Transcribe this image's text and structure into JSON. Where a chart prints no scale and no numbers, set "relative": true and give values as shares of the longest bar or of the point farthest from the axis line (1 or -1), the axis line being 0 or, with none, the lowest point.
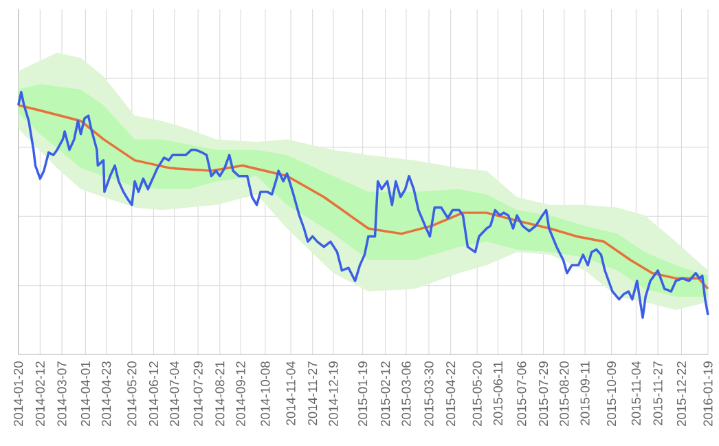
{
  "chart_data": {
    "type": "line",
    "relative": true,
    "grid": true,
    "xlim": [
      "2014-01-20",
      "2016-01-19"
    ],
    "xticks": [
      "2014-01-20",
      "2014-02-12",
      "2014-03-07",
      "2014-04-01",
      "2014-04-23",
      "2014-05-20",
      "2014-06-12",
      "2014-07-04",
      "2014-07-29",
      "2014-08-21",
      "2014-09-12",
      "2014-10-08",
      "2014-11-04",
      "2014-11-27",
      "2014-12-19",
      "2015-01-19",
      "2015-02-12",
      "2015-03-06",
      "2015-03-30",
      "2015-04-22",
      "2015-05-20",
      "2015-06-11",
      "2015-07-06",
      "2015-07-29",
      "2015-08-20",
      "2015-09-11",
      "2015-10-09",
      "2015-11-04",
      "2015-11-27",
      "2015-12-22",
      "2016-01-19"
    ],
    "series": [
      {
        "color": "#def6d6",
        "x": [
          "2014-01-20",
          "2014-03-02",
          "2014-03-27",
          "2014-04-20",
          "2014-05-23",
          "2014-06-21",
          "2014-07-19",
          "2014-08-17",
          "2014-09-29",
          "2014-10-31",
          "2014-12-19",
          "2015-01-25",
          "2015-03-15",
          "2015-05-01",
          "2015-05-30",
          "2015-07-01",
          "2015-08-05",
          "2015-09-11",
          "2015-10-15",
          "2015-11-13",
          "2015-12-16",
          "2016-01-19"
        ],
        "values": [
          null,
          null,
          null,
          null,
          null,
          null,
          null,
          null,
          null,
          null,
          null,
          null,
          null,
          null,
          null,
          null,
          null,
          null,
          null,
          null,
          null,
          null
        ],
        "upper": [
          1.08,
          1.15,
          1.13,
          1.06,
          0.91,
          0.89,
          0.86,
          0.82,
          0.81,
          0.82,
          0.78,
          0.76,
          0.74,
          0.71,
          0.7,
          0.6,
          0.57,
          0.57,
          0.56,
          0.53,
          0.43,
          0.32
        ],
        "lower": [
          0.86,
          0.71,
          0.63,
          0.6,
          0.56,
          0.55,
          0.56,
          0.57,
          0.61,
          0.48,
          0.31,
          0.24,
          0.25,
          0.31,
          0.34,
          0.39,
          0.38,
          0.32,
          0.22,
          0.2,
          0.17,
          0.2
        ]
      },
      {
        "color": "#bdf8b4",
        "x": [
          "2014-01-20",
          "2014-02-12",
          "2014-03-27",
          "2014-04-20",
          "2014-05-23",
          "2014-06-21",
          "2014-07-19",
          "2014-08-17",
          "2014-09-29",
          "2014-10-31",
          "2014-12-19",
          "2015-01-25",
          "2015-03-15",
          "2015-05-01",
          "2015-05-30",
          "2015-07-01",
          "2015-08-05",
          "2015-09-11",
          "2015-10-15",
          "2015-11-13",
          "2015-12-16",
          "2016-01-19"
        ],
        "values": [
          null,
          null,
          null,
          null,
          null,
          null,
          null,
          null,
          null,
          null,
          null,
          null,
          null,
          null,
          null,
          null,
          null,
          null,
          null,
          null,
          null,
          null
        ],
        "upper": [
          1.01,
          1.03,
          1.01,
          0.95,
          0.82,
          0.82,
          0.8,
          0.78,
          0.78,
          0.76,
          0.68,
          0.62,
          0.62,
          0.63,
          0.61,
          0.55,
          0.53,
          0.49,
          0.46,
          0.39,
          0.34,
          0.3
        ],
        "lower": [
          0.92,
          0.84,
          0.71,
          0.68,
          0.64,
          0.63,
          0.63,
          0.66,
          0.68,
          0.57,
          0.46,
          0.36,
          0.36,
          0.41,
          0.43,
          0.4,
          0.39,
          0.37,
          0.32,
          0.25,
          0.22,
          0.22
        ]
      },
      {
        "color": "#e8703a",
        "x": [
          "2014-01-20",
          "2014-02-12",
          "2014-03-27",
          "2014-04-20",
          "2014-05-23",
          "2014-06-30",
          "2014-08-12",
          "2014-09-14",
          "2014-10-31",
          "2014-12-09",
          "2015-01-25",
          "2015-03-01",
          "2015-04-02",
          "2015-05-05",
          "2015-05-30",
          "2015-07-01",
          "2015-08-05",
          "2015-09-02",
          "2015-10-01",
          "2015-10-29",
          "2015-11-21",
          "2015-12-16",
          "2016-01-09",
          "2016-01-19"
        ],
        "values": [
          0.95,
          0.93,
          0.89,
          0.82,
          0.74,
          0.71,
          0.7,
          0.72,
          0.68,
          0.6,
          0.48,
          0.46,
          0.49,
          0.54,
          0.54,
          0.51,
          0.48,
          0.45,
          0.43,
          0.36,
          0.31,
          0.29,
          0.29,
          0.25
        ]
      },
      {
        "color": "#3a5ee6",
        "x": [
          "2014-01-20",
          "2014-01-23",
          "2014-01-26",
          "2014-01-31",
          "2014-02-05",
          "2014-02-07",
          "2014-02-12",
          "2014-02-16",
          "2014-02-21",
          "2014-02-26",
          "2014-03-02",
          "2014-03-08",
          "2014-03-10",
          "2014-03-15",
          "2014-03-20",
          "2014-03-24",
          "2014-03-27",
          "2014-03-31",
          "2014-04-04",
          "2014-04-07",
          "2014-04-13",
          "2014-04-14",
          "2014-04-20",
          "2014-04-21",
          "2014-04-27",
          "2014-05-02",
          "2014-05-06",
          "2014-05-11",
          "2014-05-16",
          "2014-05-20",
          "2014-05-23",
          "2014-05-27",
          "2014-06-01",
          "2014-06-06",
          "2014-06-11",
          "2014-06-16",
          "2014-06-23",
          "2014-06-28",
          "2014-07-02",
          "2014-07-09",
          "2014-07-16",
          "2014-07-22",
          "2014-07-26",
          "2014-08-02",
          "2014-08-07",
          "2014-08-12",
          "2014-08-17",
          "2014-08-21",
          "2014-08-26",
          "2014-08-31",
          "2014-09-04",
          "2014-09-10",
          "2014-09-14",
          "2014-09-19",
          "2014-09-24",
          "2014-09-29",
          "2014-10-03",
          "2014-10-10",
          "2014-10-15",
          "2014-10-20",
          "2014-10-22",
          "2014-10-27",
          "2014-10-31",
          "2014-11-06",
          "2014-11-13",
          "2014-11-18",
          "2014-11-22",
          "2014-11-27",
          "2014-12-02",
          "2014-12-09",
          "2014-12-16",
          "2014-12-23",
          "2014-12-28",
          "2015-01-04",
          "2015-01-11",
          "2015-01-16",
          "2015-01-21",
          "2015-01-25",
          "2015-02-01",
          "2015-02-04",
          "2015-02-08",
          "2015-02-14",
          "2015-02-19",
          "2015-02-23",
          "2015-02-28",
          "2015-03-05",
          "2015-03-09",
          "2015-03-14",
          "2015-03-19",
          "2015-03-26",
          "2015-03-31",
          "2015-04-05",
          "2015-04-12",
          "2015-04-19",
          "2015-04-24",
          "2015-05-01",
          "2015-05-05",
          "2015-05-10",
          "2015-05-18",
          "2015-05-22",
          "2015-05-30",
          "2015-06-03",
          "2015-06-08",
          "2015-06-13",
          "2015-06-17",
          "2015-06-22",
          "2015-06-27",
          "2015-07-01",
          "2015-07-07",
          "2015-07-14",
          "2015-07-21",
          "2015-07-28",
          "2015-08-01",
          "2015-08-04",
          "2015-08-12",
          "2015-08-19",
          "2015-08-23",
          "2015-08-28",
          "2015-09-04",
          "2015-09-09",
          "2015-09-14",
          "2015-09-18",
          "2015-09-23",
          "2015-09-28",
          "2015-10-02",
          "2015-10-10",
          "2015-10-17",
          "2015-10-22",
          "2015-10-27",
          "2015-10-31",
          "2015-11-05",
          "2015-11-11",
          "2015-11-14",
          "2015-11-19",
          "2015-11-27",
          "2015-12-04",
          "2015-12-11",
          "2015-12-16",
          "2015-12-23",
          "2015-12-30",
          "2016-01-06",
          "2016-01-10",
          "2016-01-13",
          "2016-01-16",
          "2016-01-19"
        ],
        "values": [
          0.95,
          1.0,
          0.95,
          0.89,
          0.78,
          0.72,
          0.67,
          0.7,
          0.77,
          0.76,
          0.78,
          0.82,
          0.85,
          0.78,
          0.82,
          0.89,
          0.84,
          0.9,
          0.91,
          0.86,
          0.78,
          0.72,
          0.74,
          0.62,
          0.68,
          0.72,
          0.66,
          0.62,
          0.59,
          0.57,
          0.66,
          0.62,
          0.67,
          0.63,
          0.67,
          0.71,
          0.75,
          0.74,
          0.76,
          0.76,
          0.76,
          0.78,
          0.78,
          0.77,
          0.76,
          0.68,
          0.7,
          0.68,
          0.71,
          0.76,
          0.7,
          0.68,
          0.68,
          0.68,
          0.6,
          0.57,
          0.62,
          0.62,
          0.61,
          0.67,
          0.7,
          0.66,
          0.69,
          0.62,
          0.53,
          0.48,
          0.43,
          0.45,
          0.43,
          0.41,
          0.43,
          0.39,
          0.32,
          0.33,
          0.28,
          0.34,
          0.38,
          0.45,
          0.45,
          0.66,
          0.63,
          0.66,
          0.57,
          0.66,
          0.6,
          0.63,
          0.68,
          0.63,
          0.55,
          0.49,
          0.45,
          0.56,
          0.56,
          0.52,
          0.55,
          0.55,
          0.53,
          0.41,
          0.39,
          0.45,
          0.48,
          0.49,
          0.55,
          0.53,
          0.54,
          0.53,
          0.48,
          0.53,
          0.49,
          0.47,
          0.49,
          0.53,
          0.55,
          0.48,
          0.41,
          0.36,
          0.31,
          0.34,
          0.34,
          0.38,
          0.34,
          0.39,
          0.4,
          0.38,
          0.32,
          0.24,
          0.21,
          0.23,
          0.24,
          0.21,
          0.28,
          0.14,
          0.22,
          0.28,
          0.32,
          0.25,
          0.24,
          0.28,
          0.29,
          0.28,
          0.31,
          0.29,
          0.3,
          0.21,
          0.15
        ]
      }
    ]
  }
}
